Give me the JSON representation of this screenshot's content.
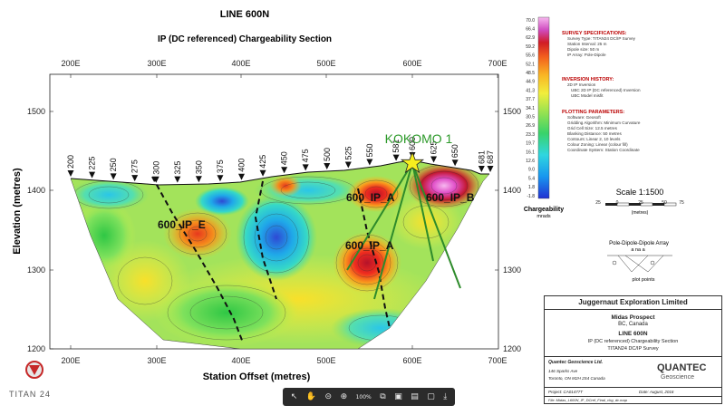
{
  "header": {
    "title": "LINE 600N",
    "subtitle": "IP (DC referenced) Chargeability Section"
  },
  "axes": {
    "x_label": "Station Offset (metres)",
    "y_label": "Elevation (metres)",
    "x_ticks": [
      "200E",
      "300E",
      "400E",
      "500E",
      "600E",
      "700E"
    ],
    "y_ticks": [
      "1500",
      "1400",
      "1300",
      "1200"
    ]
  },
  "stations": [
    "200",
    "225",
    "250",
    "275",
    "300",
    "325",
    "350",
    "375",
    "400",
    "425",
    "450",
    "475",
    "500",
    "525",
    "550",
    "581",
    "600",
    "625",
    "650",
    "681",
    "687"
  ],
  "annotations": {
    "kokomo": "KOKOMO 1",
    "ip_e": "600_IP_E",
    "ip_a_upper": "600_IP_A",
    "ip_a_lower": "600_IP_A",
    "ip_b": "600_IP_B"
  },
  "colorbar": {
    "ticks": [
      "70.0",
      "66.4",
      "62.9",
      "59.2",
      "55.6",
      "52.1",
      "48.5",
      "44.9",
      "41.3",
      "37.7",
      "34.1",
      "30.5",
      "26.9",
      "23.3",
      "19.7",
      "16.1",
      "12.6",
      "9.0",
      "5.4",
      "1.8",
      "-1.8"
    ],
    "label": "Chargeability",
    "units": "mrads"
  },
  "specs": {
    "survey_head": "SURVEY SPECIFICATIONS:",
    "survey": [
      "Survey Type: TITAN24 DC/IP Survey",
      "Station Interval: 25 m",
      "Dipole size: 50 m",
      "IP Array: Pole-Dipole"
    ],
    "inversion_head": "INVERSION HISTORY:",
    "inversion": [
      "2D IP Inversion",
      "UBC 2D IP (DC referenced) Inversion",
      "UBC Model misfit"
    ],
    "plotting_head": "PLOTTING PARAMETERS:",
    "plotting": [
      "Software: Geosoft",
      "Gridding Algorithm: Minimum Curvature",
      "Grid Cell Size: 12.5 metres",
      "Blanking Distance: 50 metres",
      "Contours: Linear 2, 10 levels",
      "Colour Zoning: Linear (colour fill)",
      "Coordinate System: Station Coordinate"
    ]
  },
  "scale": {
    "label": "Scale 1:1500",
    "ticks": [
      "25",
      "0",
      "25",
      "50",
      "75"
    ],
    "units": "(metres)"
  },
  "array": {
    "title": "Pole-Dipole-Dipole Array",
    "symbols": "a    na    a",
    "caption": "plot points"
  },
  "titleblock": {
    "company": "Juggernaut Exploration Limited",
    "prospect": "Midas Prospect",
    "location": "BC, Canada",
    "line": "LINE 600N",
    "section": "IP (DC referenced) Chargeability Section",
    "survey": "TITAN24 DC/IP Survey",
    "contractor": "Quantec Geoscience Ltd.",
    "address1": "146 Sparks Ave",
    "address2": "Toronto, ON M2H 2S4 Canada",
    "project": "Project: CA01477T",
    "date": "Date: August, 2016",
    "file": "File: Midas_L600N_IP_DCref_Final_chg_dc.map",
    "brand": "QUANTEC",
    "brand_sub": "Geoscience"
  },
  "logo": {
    "text": "TITAN 24"
  },
  "toolbar": {
    "zoom": "100%"
  }
}
